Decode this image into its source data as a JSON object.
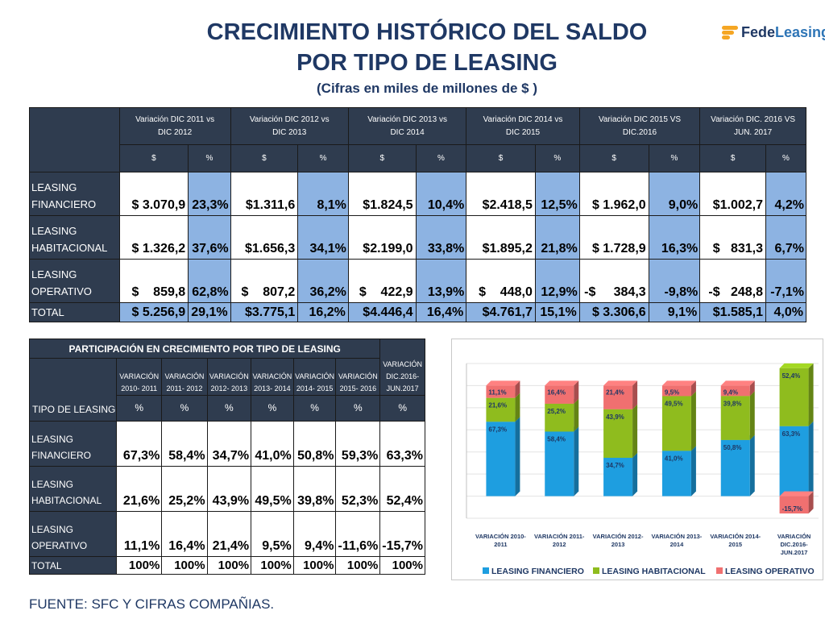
{
  "title": {
    "line1": "CRECIMIENTO HISTÓRICO DEL SALDO",
    "line2": "POR TIPO DE LEASING",
    "subtitle": "(Cifras en miles de millones de $ )"
  },
  "logo": {
    "part1": "Fede",
    "part2": "Leasing",
    "colors": [
      "#f5a623",
      "#2e75b6",
      "#1f3864"
    ]
  },
  "table1": {
    "periods": [
      [
        "Variación DIC 2011 vs",
        "DIC 2012"
      ],
      [
        "Variación DIC 2012 vs",
        "DIC 2013"
      ],
      [
        "Variación DIC 2013 vs",
        "DIC 2014"
      ],
      [
        "Variación DIC 2014 vs",
        "DIC 2015"
      ],
      [
        "Variación DIC  2015 VS",
        "DIC.2016"
      ],
      [
        "Variación DIC. 2016 VS",
        "JUN. 2017"
      ]
    ],
    "sub_money": "$",
    "sub_pct": "%",
    "rows": [
      {
        "label": [
          "LEASING",
          "FINANCIERO"
        ],
        "values": [
          [
            "$ 3.070,9",
            "23,3%"
          ],
          [
            "$1.311,6",
            "8,1%"
          ],
          [
            "$1.824,5",
            "10,4%"
          ],
          [
            "$2.418,5",
            "12,5%"
          ],
          [
            "$ 1.962,0",
            "9,0%"
          ],
          [
            "$1.002,7",
            "4,2%"
          ]
        ]
      },
      {
        "label": [
          "LEASING",
          "HABITACIONAL"
        ],
        "values": [
          [
            "$ 1.326,2",
            "37,6%"
          ],
          [
            "$1.656,3",
            "34,1%"
          ],
          [
            "$2.199,0",
            "33,8%"
          ],
          [
            "$1.895,2",
            "21,8%"
          ],
          [
            "$ 1.728,9",
            "16,3%"
          ],
          [
            "$   831,3",
            "6,7%"
          ]
        ]
      },
      {
        "label": [
          "LEASING",
          "OPERATIVO"
        ],
        "values": [
          [
            "$    859,8",
            "62,8%"
          ],
          [
            "$    807,2",
            "36,2%"
          ],
          [
            "$    422,9",
            "13,9%"
          ],
          [
            "$    448,0",
            "12,9%"
          ],
          [
            "-$     384,3",
            "-9,8%"
          ],
          [
            "-$   248,8",
            "-7,1%"
          ]
        ]
      }
    ],
    "total": {
      "label": "TOTAL",
      "values": [
        [
          "$ 5.256,9",
          "29,1%"
        ],
        [
          "$3.775,1",
          "16,2%"
        ],
        [
          "$4.446,4",
          "16,4%"
        ],
        [
          "$4.761,7",
          "15,1%"
        ],
        [
          "$ 3.306,6",
          "9,1%"
        ],
        [
          "$1.585,1",
          "4,0%"
        ]
      ]
    }
  },
  "table2": {
    "caption": "PARTICIPACIÓN EN CRECIMIENTO POR TIPO DE LEASING",
    "row_header": "TIPO DE LEASING",
    "periods": [
      [
        "VARIACIÓN",
        "2010- 2011"
      ],
      [
        "VARIACIÓN",
        "2011- 2012"
      ],
      [
        "VARIACIÓN",
        "2012- 2013"
      ],
      [
        "VARIACIÓN",
        "2013- 2014"
      ],
      [
        "VARIACIÓN",
        "2014- 2015"
      ],
      [
        "VARIACIÓN",
        "2015- 2016"
      ],
      [
        "VARIACIÓN",
        "DIC.2016-",
        "JUN.2017"
      ]
    ],
    "sub_pct": "%",
    "rows": [
      {
        "label": [
          "LEASING",
          "FINANCIERO"
        ],
        "values": [
          "67,3%",
          "58,4%",
          "34,7%",
          "41,0%",
          "50,8%",
          "59,3%",
          "63,3%"
        ]
      },
      {
        "label": [
          "LEASING",
          "HABITACIONAL"
        ],
        "values": [
          "21,6%",
          "25,2%",
          "43,9%",
          "49,5%",
          "39,8%",
          "52,3%",
          "52,4%"
        ]
      },
      {
        "label": [
          "LEASING",
          "OPERATIVO"
        ],
        "values": [
          "11,1%",
          "16,4%",
          "21,4%",
          "9,5%",
          "9,4%",
          "-11,6%",
          "-15,7%"
        ]
      }
    ],
    "total": {
      "label": "TOTAL",
      "values": [
        "100%",
        "100%",
        "100%",
        "100%",
        "100%",
        "100%",
        "100%"
      ]
    }
  },
  "chart_data": {
    "type": "bar",
    "stacked": true,
    "categories": [
      [
        "VARIACIÓN 2010-",
        "2011"
      ],
      [
        "VARIACIÓN 2011-",
        "2012"
      ],
      [
        "VARIACIÓN 2012-",
        "2013"
      ],
      [
        "VARIACIÓN 2013-",
        "2014"
      ],
      [
        "VARIACIÓN 2014-",
        "2015"
      ],
      [
        "VARIACIÓN",
        "DIC.2016-",
        "JUN.2017"
      ]
    ],
    "series": [
      {
        "name": "LEASING FINANCIERO",
        "color": "#1e9ee0",
        "values": [
          67.3,
          58.4,
          34.7,
          41.0,
          50.8,
          63.3
        ],
        "labels": [
          "67,3%",
          "58,4%",
          "34,7%",
          "41,0%",
          "50,8%",
          "63,3%"
        ]
      },
      {
        "name": "LEASING HABITACIONAL",
        "color": "#8fbc1e",
        "values": [
          21.6,
          25.2,
          43.9,
          49.5,
          39.8,
          52.4
        ],
        "labels": [
          "21,6%",
          "25,2%",
          "43,9%",
          "49,5%",
          "39,8%",
          "52,4%"
        ]
      },
      {
        "name": "LEASING OPERATIVO",
        "color": "#f07070",
        "values": [
          11.1,
          16.4,
          21.4,
          9.5,
          9.4,
          -15.7
        ],
        "labels": [
          "11,1%",
          "16,4%",
          "21,4%",
          "9,5%",
          "9,4%",
          "-15,7%"
        ]
      }
    ],
    "ylim": [
      -20,
      120
    ],
    "grid": true,
    "legend": "bottom"
  },
  "source": "FUENTE: SFC Y CIFRAS COMPAÑIAS."
}
